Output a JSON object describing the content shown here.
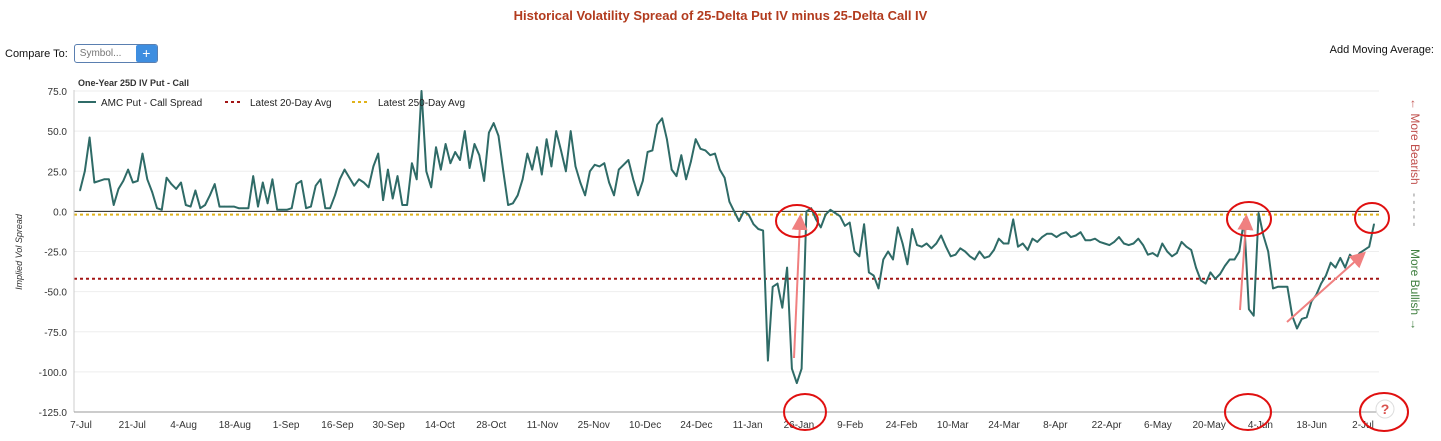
{
  "page": {
    "title": "Historical Volatility Spread of 25-Delta Put IV minus 25-Delta Call IV",
    "compare_label": "Compare To:",
    "symbol_placeholder": "Symbol...",
    "plus_label": "+",
    "moving_average_label": "Add Moving Average:",
    "help_label": "?"
  },
  "colors": {
    "series": "#2f6b67",
    "avg20": "#a31515",
    "avg250": "#e0b21a",
    "bearish": "#c0504d",
    "bullish": "#3f7f3f",
    "annotation": "#e01010",
    "arrow": "#f08080"
  },
  "chart_data": {
    "type": "line",
    "title": "One-Year 25D IV Put - Call",
    "ylabel": "Implied Vol Spread",
    "ylim": [
      -125,
      75
    ],
    "yticks": [
      75,
      50,
      25,
      0,
      -25,
      -50,
      -75,
      -100,
      -125
    ],
    "ytick_labels": [
      "75.0",
      "50.0",
      "25.0",
      "0.0",
      "-25.0",
      "-50.0",
      "-75.0",
      "-100.0",
      "-125.0"
    ],
    "x_labels": [
      "7-Jul",
      "21-Jul",
      "4-Aug",
      "18-Aug",
      "1-Sep",
      "16-Sep",
      "30-Sep",
      "14-Oct",
      "28-Oct",
      "11-Nov",
      "25-Nov",
      "10-Dec",
      "24-Dec",
      "11-Jan",
      "26-Jan",
      "9-Feb",
      "24-Feb",
      "10-Mar",
      "24-Mar",
      "8-Apr",
      "22-Apr",
      "6-May",
      "20-May",
      "4-Jun",
      "18-Jun",
      "2-Jul"
    ],
    "legend": {
      "series": "AMC Put - Call Spread",
      "avg20": "Latest 20-Day Avg",
      "avg250": "Latest 250-Day Avg"
    },
    "side_bearish": "← More Bearish",
    "side_divider": "- - - - -",
    "side_bullish": "More Bullish →",
    "avg20_value": -42,
    "avg250_value": -2,
    "zero_line": 0,
    "series": [
      {
        "name": "AMC Put - Call Spread",
        "values": [
          13,
          25,
          46,
          18,
          19,
          20,
          20,
          4,
          14,
          19,
          26,
          18,
          19,
          36,
          20,
          12,
          2,
          1,
          21,
          17,
          14,
          18,
          4,
          3,
          13,
          2,
          4,
          10,
          17,
          3,
          3,
          3,
          3,
          2,
          2,
          2,
          22,
          3,
          18,
          5,
          20,
          1,
          1,
          1,
          2,
          17,
          19,
          2,
          3,
          16,
          20,
          2,
          2,
          10,
          20,
          26,
          21,
          16,
          20,
          18,
          15,
          28,
          36,
          7,
          26,
          8,
          22,
          4,
          4,
          30,
          20,
          75,
          25,
          15,
          40,
          26,
          42,
          30,
          37,
          32,
          50,
          27,
          42,
          35,
          19,
          49,
          55,
          47,
          25,
          4,
          5,
          10,
          20,
          36,
          26,
          40,
          23,
          45,
          28,
          50,
          38,
          25,
          50,
          28,
          18,
          10,
          25,
          29,
          28,
          30,
          18,
          10,
          26,
          29,
          32,
          20,
          10,
          19,
          37,
          38,
          54,
          58,
          45,
          26,
          22,
          35,
          20,
          31,
          45,
          39,
          38,
          35,
          36,
          26,
          21,
          6,
          0,
          -6,
          0,
          -2,
          -8,
          -11,
          -12,
          -93,
          -47,
          -45,
          -60,
          -35,
          -98,
          -107,
          -98,
          0,
          2,
          -5,
          -10,
          -2,
          1,
          -1,
          -3,
          -9,
          -7,
          -25,
          -28,
          -8,
          -38,
          -40,
          -48,
          -30,
          -25,
          -30,
          -10,
          -20,
          -33,
          -11,
          -21,
          -22,
          -20,
          -23,
          -20,
          -15,
          -22,
          -28,
          -27,
          -23,
          -25,
          -28,
          -30,
          -25,
          -29,
          -28,
          -24,
          -17,
          -20,
          -20,
          -5,
          -22,
          -20,
          -24,
          -17,
          -19,
          -16,
          -14,
          -14,
          -16,
          -14,
          -13,
          -16,
          -15,
          -13,
          -18,
          -18,
          -17,
          -19,
          -20,
          -21,
          -19,
          -16,
          -20,
          -21,
          -20,
          -17,
          -21,
          -27,
          -26,
          -28,
          -20,
          -25,
          -28,
          -26,
          -19,
          -22,
          -24,
          -35,
          -43,
          -45,
          -38,
          -42,
          -39,
          -34,
          -30,
          -30,
          -25,
          -5,
          -61,
          -65,
          -1,
          -15,
          -25,
          -48,
          -47,
          -47,
          -47,
          -65,
          -73,
          -67,
          -66,
          -56,
          -52,
          -45,
          -40,
          -32,
          -35,
          -29,
          -35,
          -27,
          -30,
          -26,
          -24,
          -22,
          -8
        ]
      }
    ]
  }
}
